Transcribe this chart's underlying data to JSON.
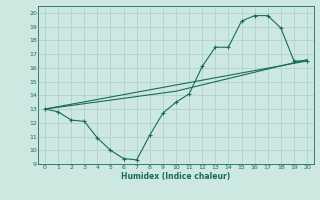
{
  "xlabel": "Humidex (Indice chaleur)",
  "ylabel": "",
  "xlim": [
    -0.5,
    20.5
  ],
  "ylim": [
    9,
    20.5
  ],
  "yticks": [
    9,
    10,
    11,
    12,
    13,
    14,
    15,
    16,
    17,
    18,
    19,
    20
  ],
  "xticks": [
    0,
    1,
    2,
    3,
    4,
    5,
    6,
    7,
    8,
    9,
    10,
    11,
    12,
    13,
    14,
    15,
    16,
    17,
    18,
    19,
    20
  ],
  "bg_color": "#cce8e0",
  "grid_color": "#aacfc8",
  "line_color": "#1a6b5a",
  "line1_x": [
    0,
    1,
    2,
    3,
    4,
    5,
    6,
    7,
    8,
    9,
    10,
    11,
    12,
    13,
    14,
    15,
    16,
    17,
    18,
    19,
    20
  ],
  "line1_y": [
    13.0,
    12.8,
    12.2,
    12.1,
    10.9,
    10.0,
    9.4,
    9.3,
    11.1,
    12.7,
    13.5,
    14.1,
    16.1,
    17.5,
    17.5,
    19.4,
    19.8,
    19.8,
    18.9,
    16.5,
    16.5
  ],
  "line2_x": [
    0,
    20
  ],
  "line2_y": [
    13.0,
    16.5
  ],
  "line3_x": [
    0,
    10,
    20
  ],
  "line3_y": [
    13.0,
    14.3,
    16.6
  ]
}
